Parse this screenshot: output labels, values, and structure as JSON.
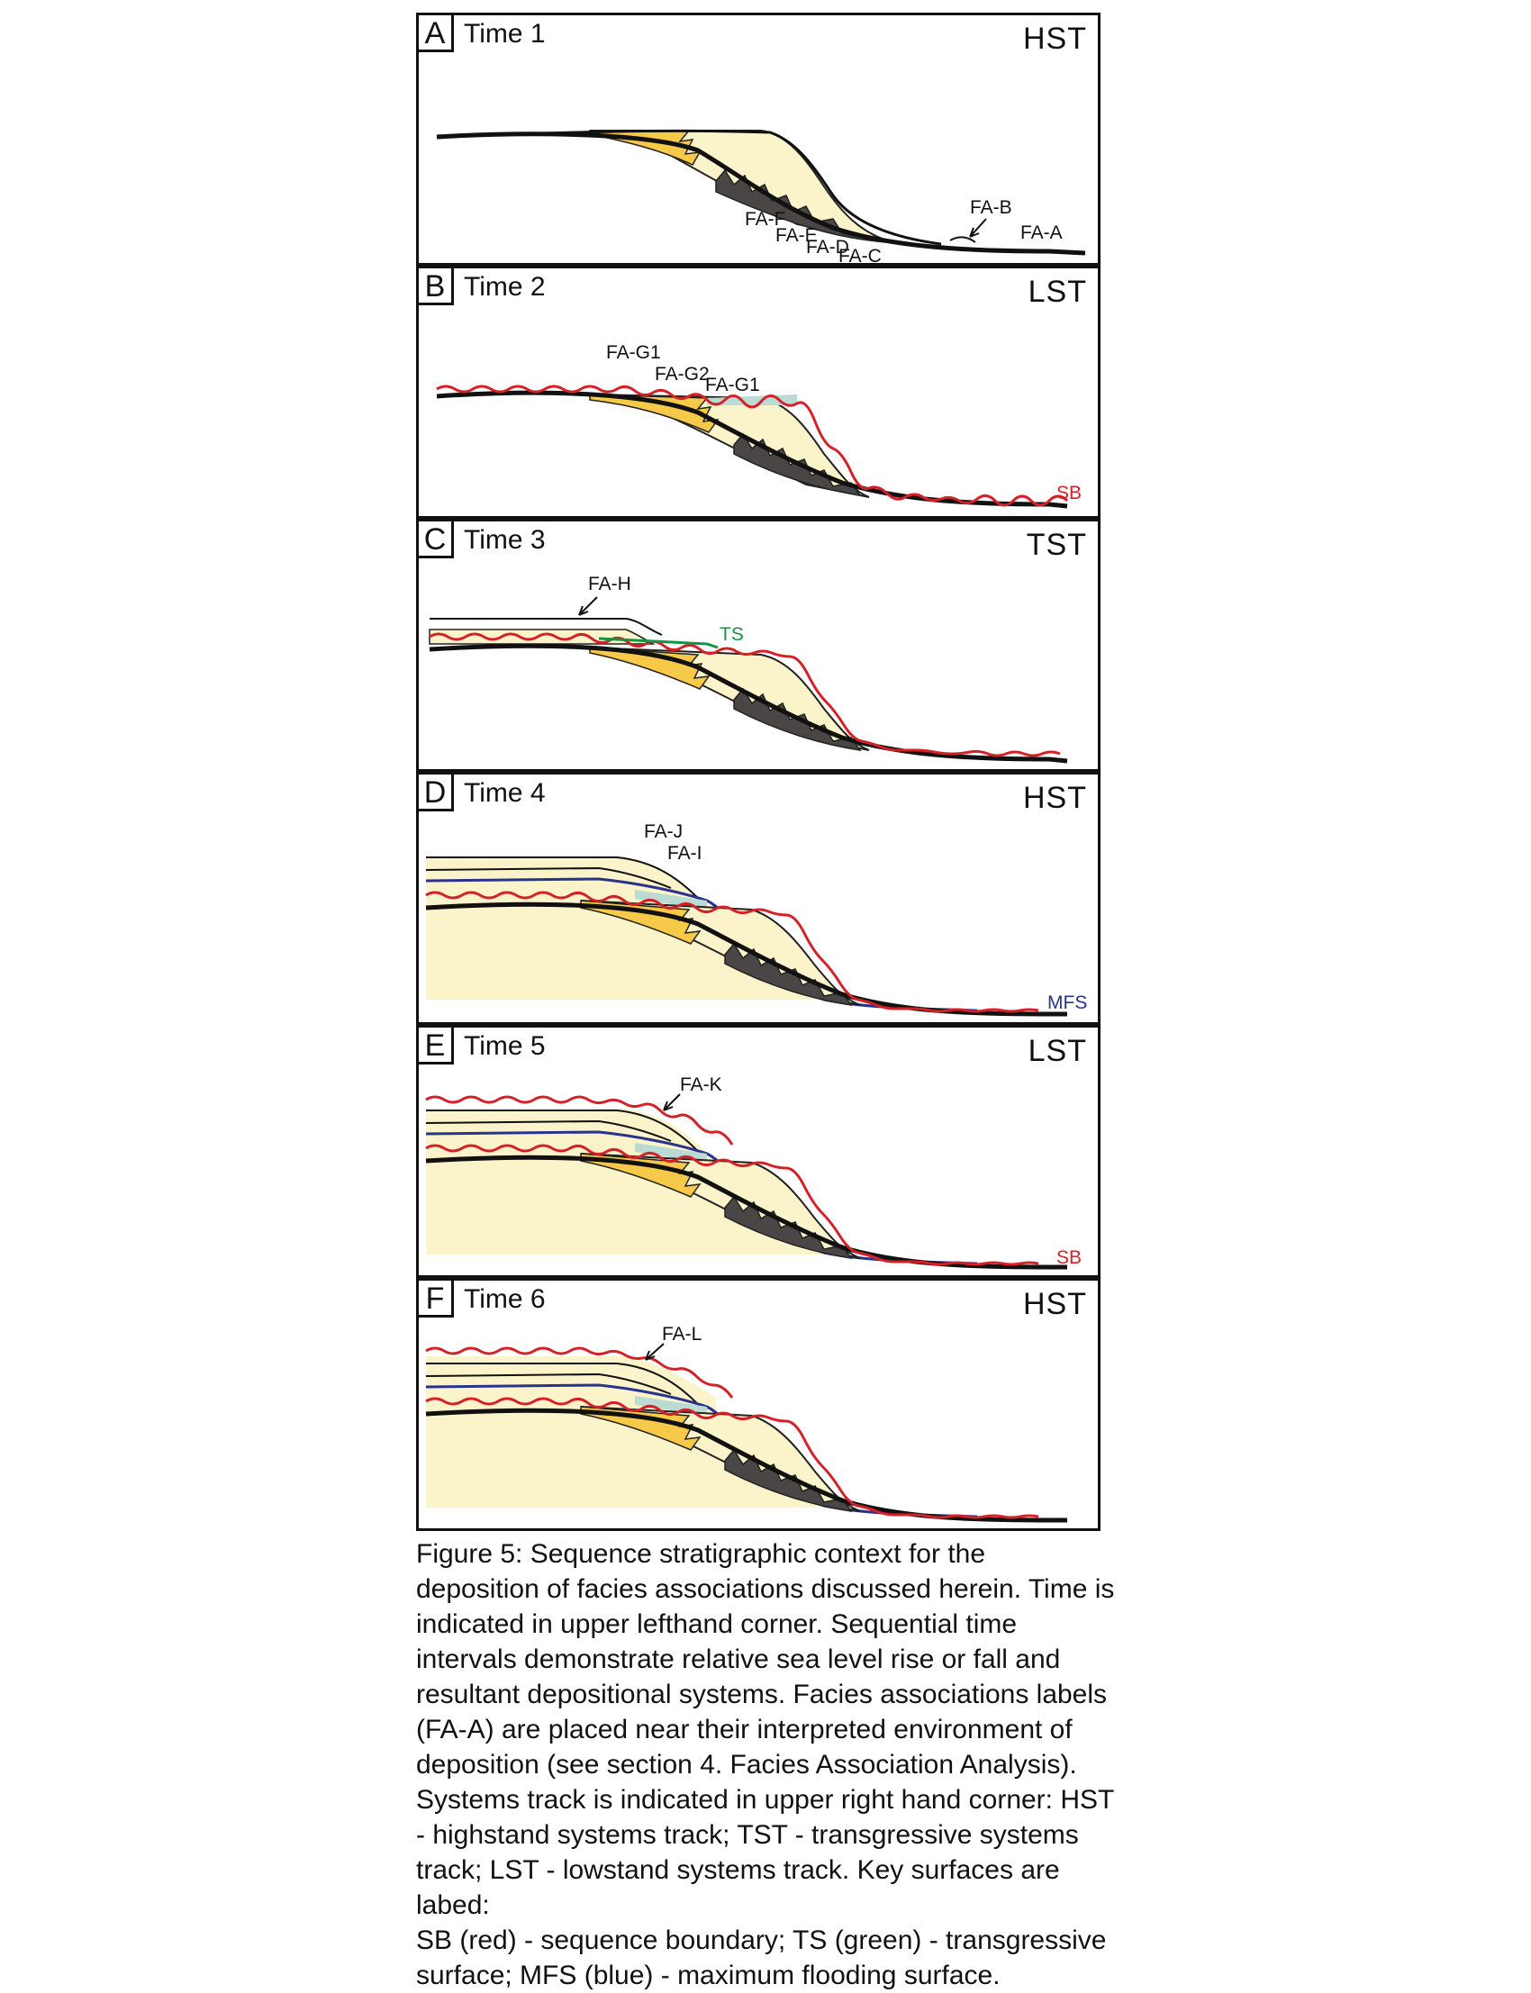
{
  "figure": {
    "panels": [
      {
        "letter": "A",
        "time": "Time 1",
        "tract": "HST",
        "labels": [
          "FA-F",
          "FA-E",
          "FA-D",
          "FA-C",
          "FA-B",
          "FA-A"
        ]
      },
      {
        "letter": "B",
        "time": "Time 2",
        "tract": "LST",
        "labels": [
          "FA-G1",
          "FA-G2",
          "FA-G1"
        ],
        "surface": "SB"
      },
      {
        "letter": "C",
        "time": "Time 3",
        "tract": "TST",
        "labels": [
          "FA-H"
        ],
        "surface": "TS"
      },
      {
        "letter": "D",
        "time": "Time 4",
        "tract": "HST",
        "labels": [
          "FA-J",
          "FA-I"
        ],
        "surface": "MFS"
      },
      {
        "letter": "E",
        "time": "Time 5",
        "tract": "LST",
        "labels": [
          "FA-K"
        ],
        "surface": "SB"
      },
      {
        "letter": "F",
        "time": "Time 6",
        "tract": "HST",
        "labels": [
          "FA-L"
        ]
      }
    ]
  },
  "colors": {
    "sequence_boundary": "#d62027",
    "transgressive_surface": "#149447",
    "maximum_flooding_surface": "#29338f",
    "pale_fill": "#fbf3c9",
    "yellow_fill": "#f7c948",
    "dark_fill": "#4a4646",
    "teal_fill": "#b9dbd3"
  },
  "caption": "Figure 5: Sequence stratigraphic context for the\ndeposition of  facies associations discussed herein. Time is\nindicated in upper lefthand corner. Sequential time\nintervals demonstrate relative sea level rise or fall and\nresultant depositional systems. Facies associations labels\n(FA-A) are placed near their interpreted environment of\ndeposition (see section 4. Facies Association Analysis).\nSystems track is indicated in upper right hand corner: HST\n- highstand systems track; TST - transgressive systems\ntrack; LST - lowstand systems track. Key surfaces are labed:\nSB (red) - sequence boundary; TS (green) - transgressive\nsurface; MFS (blue) - maximum flooding surface."
}
